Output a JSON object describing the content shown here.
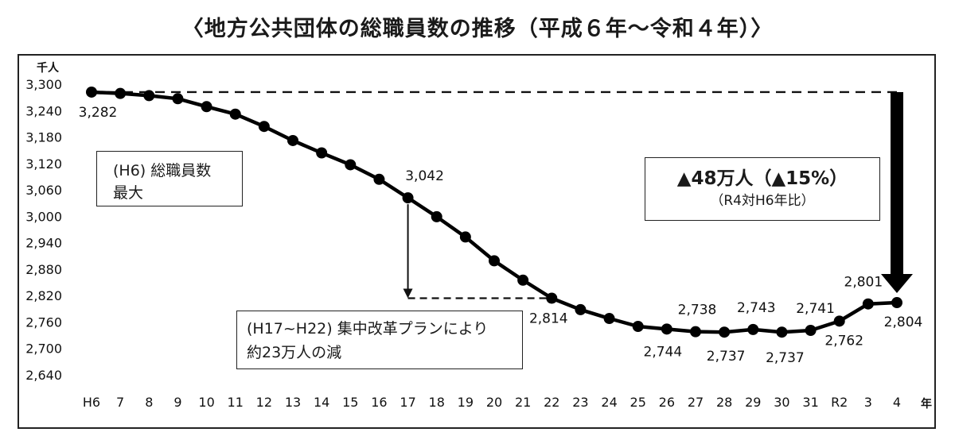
{
  "chart_data": {
    "type": "line",
    "title": "〈地方公共団体の総職員数の推移（平成６年～令和４年）〉",
    "y_unit_label": "千人",
    "x_unit_label": "年",
    "ylim": [
      2640,
      3300
    ],
    "yticks": [
      "3,300",
      "3,240",
      "3,180",
      "3,120",
      "3,060",
      "3,000",
      "2,940",
      "2,880",
      "2,820",
      "2,760",
      "2,700",
      "2,640"
    ],
    "ytick_values": [
      3300,
      3240,
      3180,
      3120,
      3060,
      3000,
      2940,
      2880,
      2820,
      2760,
      2700,
      2640
    ],
    "categories": [
      "H6",
      "7",
      "8",
      "9",
      "10",
      "11",
      "12",
      "13",
      "14",
      "15",
      "16",
      "17",
      "18",
      "19",
      "20",
      "21",
      "22",
      "23",
      "24",
      "25",
      "26",
      "27",
      "28",
      "29",
      "30",
      "31",
      "R2",
      "3",
      "4"
    ],
    "values": [
      3282,
      3279,
      3274,
      3267,
      3249,
      3232,
      3204,
      3172,
      3144,
      3117,
      3084,
      3042,
      2999,
      2953,
      2899,
      2855,
      2814,
      2788,
      2768,
      2750,
      2744,
      2738,
      2737,
      2743,
      2737,
      2741,
      2762,
      2801,
      2804
    ],
    "grid": false,
    "data_labels": [
      {
        "index": 0,
        "text": "3,282"
      },
      {
        "index": 11,
        "text": "3,042"
      },
      {
        "index": 16,
        "text": "2,814"
      },
      {
        "index": 20,
        "text": "2,744"
      },
      {
        "index": 21,
        "text": "2,738"
      },
      {
        "index": 22,
        "text": "2,737"
      },
      {
        "index": 23,
        "text": "2,743"
      },
      {
        "index": 24,
        "text": "2,737"
      },
      {
        "index": 25,
        "text": "2,741"
      },
      {
        "index": 26,
        "text": "2,762"
      },
      {
        "index": 27,
        "text": "2,801"
      },
      {
        "index": 28,
        "text": "2,804"
      }
    ]
  },
  "annotations": {
    "max_box_line1": "(H6) 総職員数",
    "max_box_line2": "最大",
    "reduction_big": "▲48万人（▲15%）",
    "reduction_small": "（R4対H6年比）",
    "plan_line1": "(H17~H22) 集中改革プランにより",
    "plan_line2": "約23万人の減"
  },
  "colors": {
    "line": "#000000",
    "marker": "#000000",
    "text": "#1a1a1a"
  }
}
